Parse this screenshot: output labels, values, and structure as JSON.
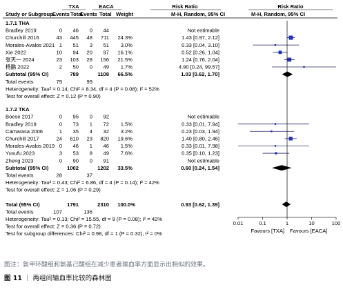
{
  "chart_data": {
    "type": "forest",
    "headers": {
      "txa": "TXA",
      "eaca": "EACA",
      "rr_group_left": "Risk Ratio",
      "rr_group_right": "Risk Ratio",
      "study": "Study or Subgroup",
      "events1": "Events",
      "total1": "Total",
      "events2": "Events",
      "total2": "Total",
      "weight": "Weight",
      "ci_left": "M-H, Random, 95% CI",
      "ci_right": "M-H, Random, 95% CI"
    },
    "subgroups": [
      {
        "title": "1.7.1 THA",
        "studies": [
          {
            "name": "Bradley 2019",
            "e1": "0",
            "n1": "46",
            "e2": "0",
            "n2": "44",
            "weight": "",
            "ci": "Not estimable",
            "rr": null,
            "lo": null,
            "hi": null
          },
          {
            "name": "Churchill 2016",
            "e1": "43",
            "n1": "445",
            "e2": "48",
            "n2": "711",
            "weight": "24.3%",
            "ci": "1.43 [0.97, 2.12]",
            "rr": 1.43,
            "lo": 0.97,
            "hi": 2.12
          },
          {
            "name": "Morales-Avalos 2021",
            "e1": "1",
            "n1": "51",
            "e2": "3",
            "n2": "51",
            "weight": "3.0%",
            "ci": "0.33 [0.04, 3.10]",
            "rr": 0.33,
            "lo": 0.04,
            "hi": 3.1
          },
          {
            "name": "Xie 2022",
            "e1": "10",
            "n1": "94",
            "e2": "20",
            "n2": "97",
            "weight": "16.1%",
            "ci": "0.52 [0.26, 1.04]",
            "rr": 0.52,
            "lo": 0.26,
            "hi": 1.04
          },
          {
            "name": "张天一 2024",
            "e1": "23",
            "n1": "103",
            "e2": "28",
            "n2": "156",
            "weight": "21.5%",
            "ci": "1.24 [0.76, 2.04]",
            "rr": 1.24,
            "lo": 0.76,
            "hi": 2.04
          },
          {
            "name": "杨鹏 2022",
            "e1": "2",
            "n1": "50",
            "e2": "0",
            "n2": "49",
            "weight": "1.7%",
            "ci": "4.90 [0.24, 99.57]",
            "rr": 4.9,
            "lo": 0.24,
            "hi": 99.57
          }
        ],
        "subtotal": {
          "label": "Subtotal (95% CI)",
          "n1": "789",
          "n2": "1108",
          "weight": "66.5%",
          "ci": "1.03 [0.62, 1.70]",
          "rr": 1.03,
          "lo": 0.62,
          "hi": 1.7
        },
        "total_events": {
          "label": "Total events",
          "e1": "79",
          "e2": "99"
        },
        "heterogeneity": "Heterogeneity: Tau² = 0.14; Chi² = 8.34, df = 4 (P = 0.08); I² = 52%",
        "overall": "Test for overall effect: Z = 0.12 (P = 0.90)"
      },
      {
        "title": "1.7.2 TKA",
        "studies": [
          {
            "name": "Boese 2017",
            "e1": "0",
            "n1": "95",
            "e2": "0",
            "n2": "92",
            "weight": "",
            "ci": "Not estimable",
            "rr": null,
            "lo": null,
            "hi": null
          },
          {
            "name": "Bradley 2019",
            "e1": "0",
            "n1": "73",
            "e2": "1",
            "n2": "72",
            "weight": "1.5%",
            "ci": "0.33 [0.01, 7.94]",
            "rr": 0.33,
            "lo": 0.01,
            "hi": 7.94
          },
          {
            "name": "Camarasa 2006",
            "e1": "1",
            "n1": "35",
            "e2": "4",
            "n2": "32",
            "weight": "3.2%",
            "ci": "0.23 [0.03, 1.94]",
            "rr": 0.23,
            "lo": 0.03,
            "hi": 1.94
          },
          {
            "name": "Churchill 2017",
            "e1": "24",
            "n1": "610",
            "e2": "23",
            "n2": "820",
            "weight": "19.6%",
            "ci": "1.40 [0.80, 2.46]",
            "rr": 1.4,
            "lo": 0.8,
            "hi": 2.46
          },
          {
            "name": "Morales-Avalos 2019",
            "e1": "0",
            "n1": "46",
            "e2": "1",
            "n2": "46",
            "weight": "1.5%",
            "ci": "0.33 [0.01, 7.98]",
            "rr": 0.33,
            "lo": 0.01,
            "hi": 7.98
          },
          {
            "name": "Yusufu 2023",
            "e1": "3",
            "n1": "53",
            "e2": "8",
            "n2": "49",
            "weight": "7.6%",
            "ci": "0.35 [0.10, 1.23]",
            "rr": 0.35,
            "lo": 0.1,
            "hi": 1.23
          },
          {
            "name": "Zheng 2023",
            "e1": "0",
            "n1": "90",
            "e2": "0",
            "n2": "91",
            "weight": "",
            "ci": "Not estimable",
            "rr": null,
            "lo": null,
            "hi": null
          }
        ],
        "subtotal": {
          "label": "Subtotal (95% CI)",
          "n1": "1002",
          "n2": "1202",
          "weight": "33.5%",
          "ci": "0.60 [0.24, 1.54]",
          "rr": 0.6,
          "lo": 0.24,
          "hi": 1.54
        },
        "total_events": {
          "label": "Total events",
          "e1": "28",
          "e2": "37"
        },
        "heterogeneity": "Heterogeneity: Tau² = 0.43; Chi² = 6.86, df = 4 (P = 0.14); I² = 42%",
        "overall": "Test for overall effect: Z = 1.06 (P = 0.29)"
      }
    ],
    "total": {
      "label": "Total (95% CI)",
      "n1": "1791",
      "n2": "2310",
      "weight": "100.0%",
      "ci": "0.93 [0.62, 1.39]",
      "rr": 0.93,
      "lo": 0.62,
      "hi": 1.39,
      "events_label": "Total events",
      "e1": "107",
      "e2": "136",
      "heterogeneity": "Heterogeneity: Tau² = 0.13; Chi² = 15.55, df = 9 (P = 0.08); I² = 42%",
      "overall": "Test for overall effect: Z = 0.36 (P = 0.72)",
      "subgroup_diff": "Test for subgroup differences: Chi² = 0.98, df = 1 (P = 0.32), I² = 0%"
    },
    "axis": {
      "scale": "log",
      "ticks": [
        0.01,
        0.1,
        1,
        10,
        100
      ],
      "tick_labels": [
        "0.01",
        "0.1",
        "1",
        "10",
        "100"
      ],
      "favours_left": "Favours [TXA]",
      "favours_right": "Favours [EACA]"
    },
    "colors": {
      "square": "#1f2fbf",
      "line": "#2a2a6a",
      "diamond": "#000000"
    }
  },
  "caption": {
    "note": "图注：氨甲环酸组和氨基己酸组在减少患者输血率方面显示出相似的效果。",
    "fig_label": "图 11",
    "fig_title": "两组间输血率比较的森林图"
  }
}
